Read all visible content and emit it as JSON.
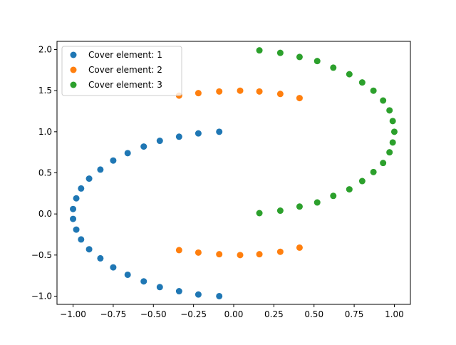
{
  "chart_data": {
    "type": "scatter",
    "title": "",
    "xlabel": "",
    "ylabel": "",
    "xlim": [
      -1.1,
      1.1
    ],
    "ylim": [
      -1.1,
      2.1
    ],
    "xticks": [
      -1.0,
      -0.75,
      -0.5,
      -0.25,
      0.0,
      0.25,
      0.5,
      0.75,
      1.0
    ],
    "xtick_labels": [
      "−1.00",
      "−0.75",
      "−0.50",
      "−0.25",
      "0.00",
      "0.25",
      "0.50",
      "0.75",
      "1.00"
    ],
    "yticks": [
      -1.0,
      -0.5,
      0.0,
      0.5,
      1.0,
      1.5,
      2.0
    ],
    "ytick_labels": [
      "−1.0",
      "−0.5",
      "0.0",
      "0.5",
      "1.0",
      "1.5",
      "2.0"
    ],
    "grid": false,
    "legend_position": "top-left",
    "series": [
      {
        "name": "Cover element: 1",
        "color": "#1f77b4",
        "x": [
          -0.09,
          -0.22,
          -0.34,
          -0.46,
          -0.56,
          -0.66,
          -0.75,
          -0.83,
          -0.9,
          -0.95,
          -0.98,
          -1.0,
          -1.0,
          -0.98,
          -0.95,
          -0.9,
          -0.83,
          -0.75,
          -0.66,
          -0.56,
          -0.46,
          -0.34,
          -0.22,
          -0.09
        ],
        "y": [
          1.0,
          0.98,
          0.94,
          0.89,
          0.82,
          0.74,
          0.65,
          0.54,
          0.43,
          0.31,
          0.19,
          0.06,
          -0.06,
          -0.19,
          -0.31,
          -0.43,
          -0.54,
          -0.65,
          -0.74,
          -0.82,
          -0.89,
          -0.94,
          -0.98,
          -1.0
        ]
      },
      {
        "name": "Cover element: 2",
        "color": "#ff7f0e",
        "x": [
          -0.34,
          -0.22,
          -0.09,
          0.04,
          0.16,
          0.29,
          0.41,
          -0.34,
          -0.22,
          -0.09,
          0.04,
          0.16,
          0.29,
          0.41
        ],
        "y": [
          1.44,
          1.47,
          1.49,
          1.5,
          1.49,
          1.46,
          1.41,
          -0.44,
          -0.47,
          -0.49,
          -0.5,
          -0.49,
          -0.46,
          -0.41
        ]
      },
      {
        "name": "Cover element: 3",
        "color": "#2ca02c",
        "x": [
          0.16,
          0.29,
          0.41,
          0.52,
          0.62,
          0.72,
          0.8,
          0.87,
          0.93,
          0.97,
          0.99,
          1.0,
          0.99,
          0.97,
          0.93,
          0.87,
          0.8,
          0.72,
          0.62,
          0.52,
          0.41,
          0.29,
          0.16
        ],
        "y": [
          1.99,
          1.96,
          1.91,
          1.86,
          1.78,
          1.7,
          1.6,
          1.5,
          1.38,
          1.26,
          1.13,
          1.0,
          0.87,
          0.75,
          0.62,
          0.51,
          0.4,
          0.3,
          0.22,
          0.14,
          0.09,
          0.04,
          0.01
        ]
      }
    ]
  }
}
